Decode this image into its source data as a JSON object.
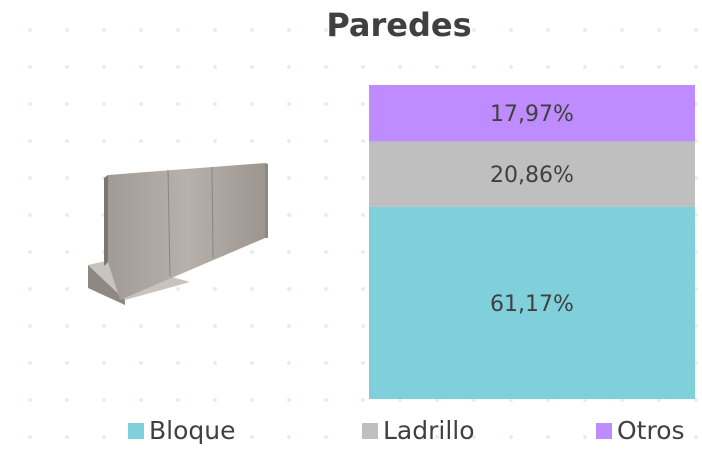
{
  "chart_data": {
    "type": "stacked_bar",
    "title": "Paredes",
    "categories": [
      null
    ],
    "series": [
      {
        "name": "Bloque",
        "color": "#80d0dc",
        "values": [
          61.17
        ],
        "value_labels": [
          "61,17%"
        ]
      },
      {
        "name": "Ladrillo",
        "color": "#bfbfbf",
        "values": [
          20.86
        ],
        "value_labels": [
          "20,86%"
        ]
      },
      {
        "name": "Otros",
        "color": "#bf8cff",
        "values": [
          17.97
        ],
        "value_labels": [
          "17,97%"
        ]
      }
    ],
    "ylim": [
      0,
      100
    ],
    "legend": "bottom"
  }
}
